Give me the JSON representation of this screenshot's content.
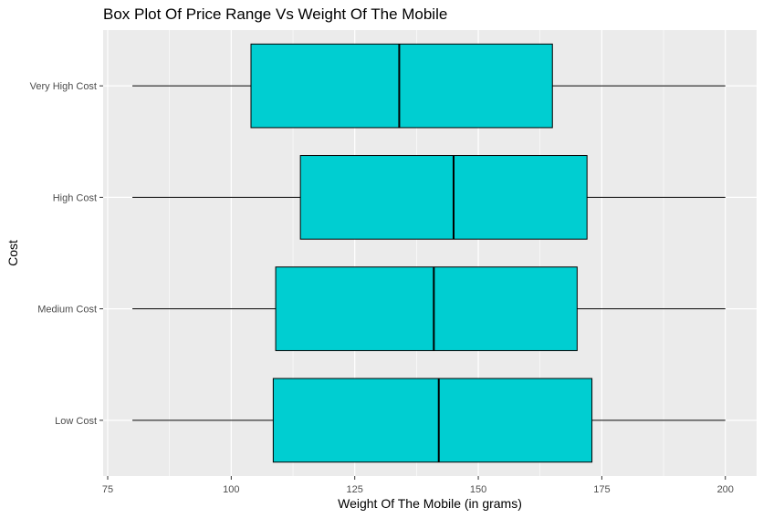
{
  "chart_data": {
    "type": "boxplot",
    "orientation": "horizontal",
    "title": "Box Plot Of Price Range Vs Weight Of The Mobile",
    "xlabel": "Weight Of The Mobile (in grams)",
    "ylabel": "Cost",
    "xlim": [
      75,
      205
    ],
    "x_ticks": [
      75,
      100,
      125,
      150,
      175,
      200
    ],
    "grid": true,
    "background": "#ebebeb",
    "gridline_color": "#ffffff",
    "box_fill": "#00ced1",
    "box_stroke": "#000000",
    "categories": [
      "Low Cost",
      "Medium Cost",
      "High Cost",
      "Very High Cost"
    ],
    "boxes": [
      {
        "category": "Low Cost",
        "min": 80,
        "q1": 108.5,
        "median": 142,
        "q3": 173,
        "max": 200
      },
      {
        "category": "Medium Cost",
        "min": 80,
        "q1": 109,
        "median": 141,
        "q3": 170,
        "max": 200
      },
      {
        "category": "High Cost",
        "min": 80,
        "q1": 114,
        "median": 145,
        "q3": 172,
        "max": 200
      },
      {
        "category": "Very High Cost",
        "min": 80,
        "q1": 104,
        "median": 134,
        "q3": 165,
        "max": 200
      }
    ]
  }
}
